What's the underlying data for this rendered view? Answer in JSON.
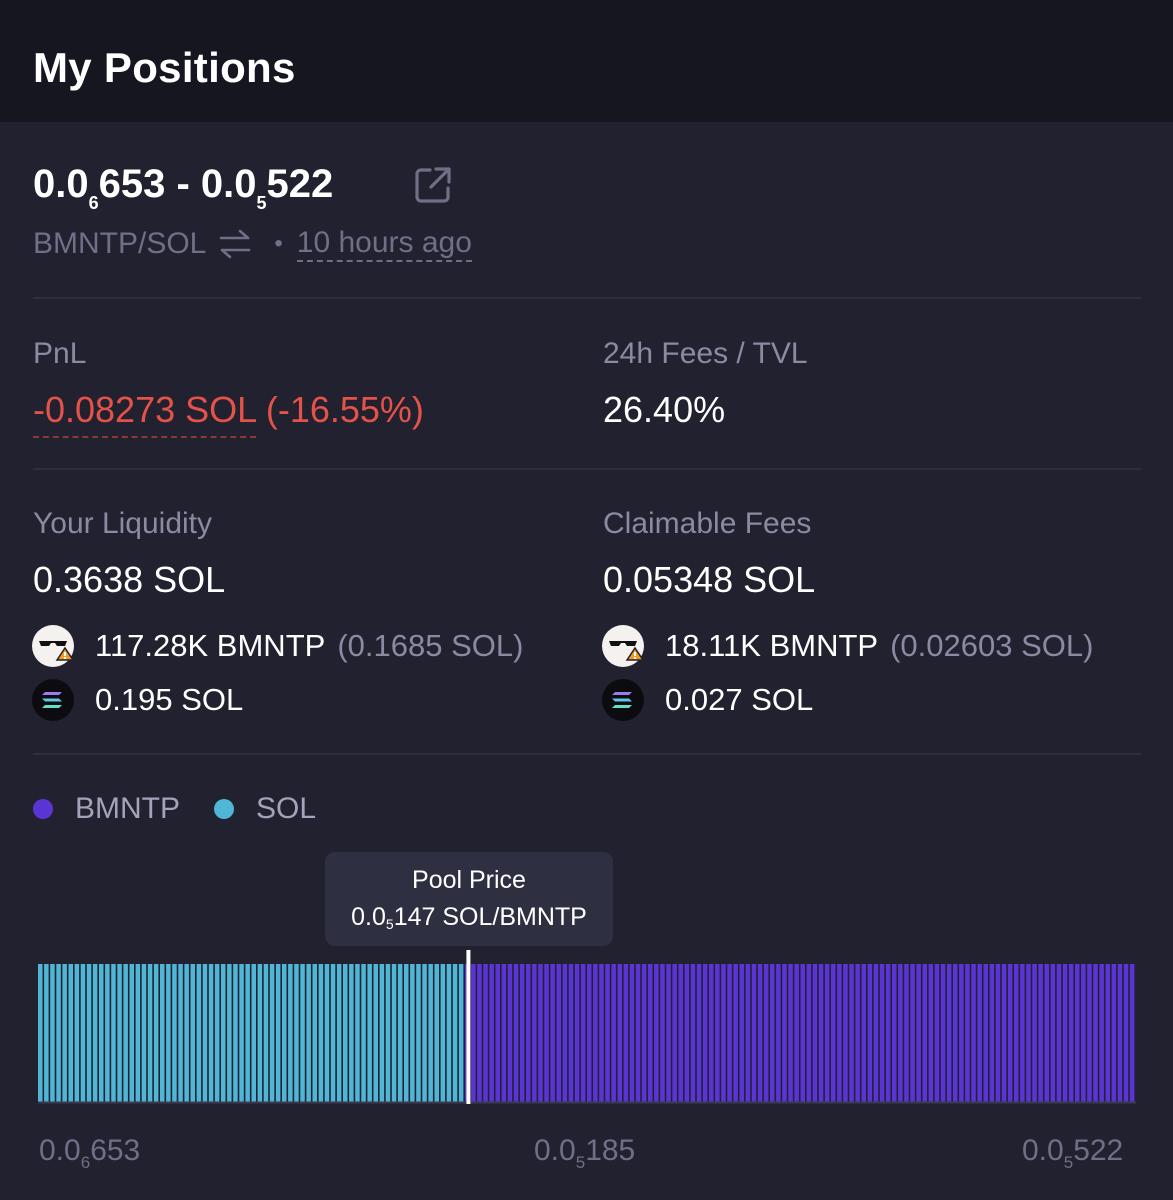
{
  "header": {
    "title": "My Positions"
  },
  "position": {
    "range": {
      "low_prefix": "0.0",
      "low_sub": "6",
      "low_digits": "653",
      "sep": " - ",
      "high_prefix": "0.0",
      "high_sub": "5",
      "high_digits": "522"
    },
    "pair": "BMNTP/SOL",
    "time": "10 hours ago"
  },
  "stats": {
    "pnl_label": "PnL",
    "pnl_value": "-0.08273 SOL",
    "pnl_percent": "(-16.55%)",
    "fees_tvl_label": "24h Fees / TVL",
    "fees_tvl_value": "26.40%"
  },
  "liquidity": {
    "label": "Your Liquidity",
    "total": "0.3638 SOL",
    "token_amount": "117.28K BMNTP",
    "token_value": "(0.1685 SOL)",
    "sol_amount": "0.195 SOL"
  },
  "fees": {
    "label": "Claimable Fees",
    "total": "0.05348 SOL",
    "token_amount": "18.11K BMNTP",
    "token_value": "(0.02603 SOL)",
    "sol_amount": "0.027 SOL"
  },
  "legend": {
    "token": "BMNTP",
    "sol": "SOL"
  },
  "tooltip": {
    "title": "Pool Price",
    "price_prefix": "0.0",
    "price_sub": "5",
    "price_rest": "147 SOL/BMNTP"
  },
  "axis": {
    "left": {
      "prefix": "0.0",
      "sub": "6",
      "digits": "653"
    },
    "mid": {
      "prefix": "0.0",
      "sub": "5",
      "digits": "185"
    },
    "right": {
      "prefix": "0.0",
      "sub": "5",
      "digits": "522"
    }
  },
  "colors": {
    "sol": "#4fb6d6",
    "token": "#5b34d6",
    "negative": "#e5524a",
    "marker": "#ffffff"
  },
  "chart_data": {
    "type": "bar",
    "series": [
      {
        "name": "SOL",
        "color": "#4fb6d6",
        "bins": 70,
        "relative_height": 1
      },
      {
        "name": "BMNTP",
        "color": "#5b34d6",
        "bins": 110,
        "relative_height": 1
      }
    ],
    "x_tick_labels": [
      "0.0₆653",
      "0.0₅185",
      "0.0₅522"
    ],
    "marker": "Pool Price",
    "marker_position_fraction": 0.392
  }
}
